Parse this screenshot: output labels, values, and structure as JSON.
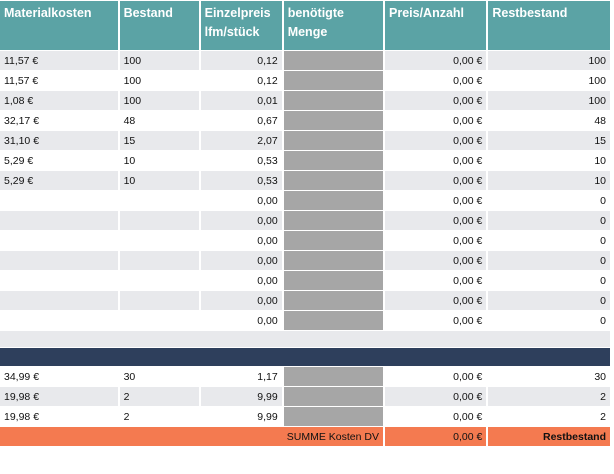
{
  "headers": [
    "Materialkosten",
    "Bestand",
    "Einzelpreis lfm/stück",
    "benötigte Menge",
    "Preis/Anzahl",
    "Restbestand"
  ],
  "rows": [
    {
      "cost": "11,57 €",
      "stock": "100",
      "unit": "0,12",
      "price": "0,00 €",
      "rest": "100"
    },
    {
      "cost": "11,57 €",
      "stock": "100",
      "unit": "0,12",
      "price": "0,00 €",
      "rest": "100"
    },
    {
      "cost": "1,08 €",
      "stock": "100",
      "unit": "0,01",
      "price": "0,00 €",
      "rest": "100"
    },
    {
      "cost": "32,17 €",
      "stock": "48",
      "unit": "0,67",
      "price": "0,00 €",
      "rest": "48"
    },
    {
      "cost": "31,10 €",
      "stock": "15",
      "unit": "2,07",
      "price": "0,00 €",
      "rest": "15"
    },
    {
      "cost": "5,29 €",
      "stock": "10",
      "unit": "0,53",
      "price": "0,00 €",
      "rest": "10"
    },
    {
      "cost": "5,29 €",
      "stock": "10",
      "unit": "0,53",
      "price": "0,00 €",
      "rest": "10"
    },
    {
      "cost": "",
      "stock": "",
      "unit": "0,00",
      "price": "0,00 €",
      "rest": "0"
    },
    {
      "cost": "",
      "stock": "",
      "unit": "0,00",
      "price": "0,00 €",
      "rest": "0"
    },
    {
      "cost": "",
      "stock": "",
      "unit": "0,00",
      "price": "0,00 €",
      "rest": "0"
    },
    {
      "cost": "",
      "stock": "",
      "unit": "0,00",
      "price": "0,00 €",
      "rest": "0"
    },
    {
      "cost": "",
      "stock": "",
      "unit": "0,00",
      "price": "0,00 €",
      "rest": "0"
    },
    {
      "cost": "",
      "stock": "",
      "unit": "0,00",
      "price": "0,00 €",
      "rest": "0"
    },
    {
      "cost": "",
      "stock": "",
      "unit": "0,00",
      "price": "0,00 €",
      "rest": "0"
    }
  ],
  "rows2": [
    {
      "cost": "34,99 €",
      "stock": "30",
      "unit": "1,17",
      "price": "0,00 €",
      "rest": "30"
    },
    {
      "cost": "19,98 €",
      "stock": "2",
      "unit": "9,99",
      "price": "0,00 €",
      "rest": "2"
    },
    {
      "cost": "19,98 €",
      "stock": "2",
      "unit": "9,99",
      "price": "0,00 €",
      "rest": "2"
    }
  ],
  "total": {
    "label": "SUMME Kosten DV",
    "value": "0,00 €",
    "rest_label": "Restbestand"
  },
  "colors": {
    "header": "#5ba3a5",
    "band": "#e8e9ec",
    "input_cell": "#a6a6a6",
    "divider": "#2e3f5c",
    "total": "#f47a50"
  }
}
